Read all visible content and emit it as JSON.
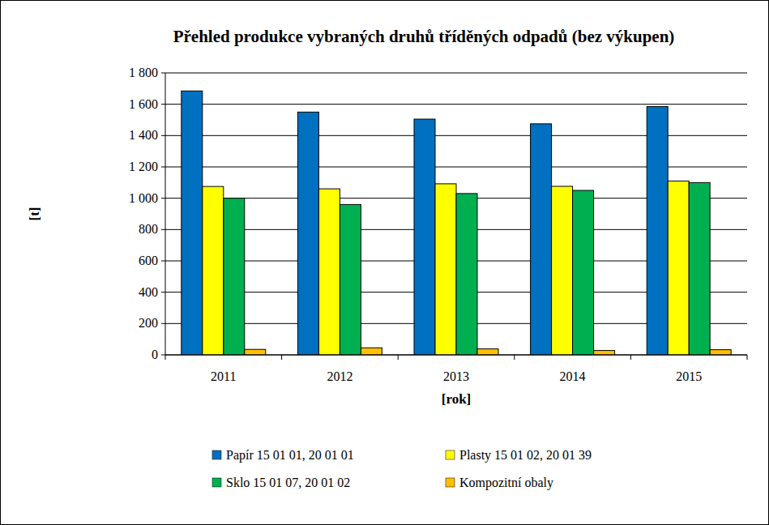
{
  "chart_data": {
    "type": "bar",
    "title": "Přehled produkce vybraných druhů tříděných odpadů (bez výkupen)",
    "x_label": "[rok]",
    "y_label": "[t]",
    "categories": [
      "2011",
      "2012",
      "2013",
      "2014",
      "2015"
    ],
    "series": [
      {
        "name": "Papír 15 01 01, 20 01 01",
        "color": "#0070c0",
        "values": [
          1685,
          1550,
          1505,
          1475,
          1585
        ]
      },
      {
        "name": "Plasty 15 01 02, 20 01 39",
        "color": "#ffff00",
        "values": [
          1075,
          1060,
          1092,
          1076,
          1110
        ]
      },
      {
        "name": "Sklo 15 01 07, 20 01 02",
        "color": "#00b050",
        "values": [
          1000,
          960,
          1030,
          1050,
          1100
        ]
      },
      {
        "name": "Kompozitní obaly",
        "color": "#ffc000",
        "values": [
          35,
          45,
          38,
          28,
          33
        ]
      }
    ],
    "ylim": [
      0,
      1800
    ],
    "yticks": [
      0,
      200,
      400,
      600,
      800,
      {
        "value": 1000,
        "label": "1 000"
      },
      {
        "value": 1200,
        "label": "1 200"
      },
      {
        "value": 1400,
        "label": "1 400"
      },
      {
        "value": 1600,
        "label": "1 600"
      },
      {
        "value": 1800,
        "label": "1 800"
      }
    ],
    "grid": true,
    "legend": "bottom"
  }
}
